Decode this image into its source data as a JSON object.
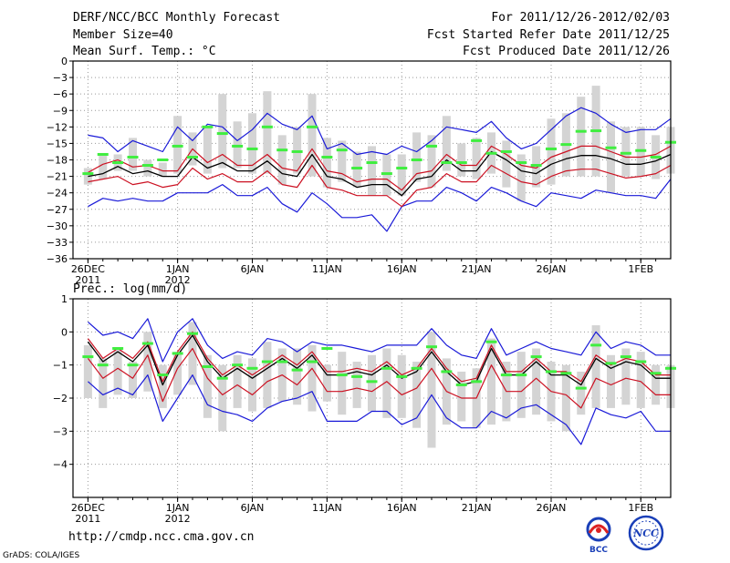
{
  "header": {
    "title": "DERF/NCC/BCC Monthly Forecast",
    "member_size": "Member Size=40",
    "variable": "Mean Surf. Temp.: °C",
    "period": "For 2011/12/26-2012/02/03",
    "refer_date": "Fcst Started Refer Date 2011/12/25",
    "produced_date": "Fcst Produced Date 2011/12/26"
  },
  "footer": {
    "url": "http://cmdp.ncc.cma.gov.cn",
    "credit": "GrADS: COLA/IGES",
    "logo_bcc": "BCC",
    "logo_ncc": "NCC"
  },
  "colors": {
    "median": "#000000",
    "quartile": "#cc1122",
    "extreme": "#1a1ad8",
    "box": "#d4d4d4",
    "marker": "#40ee40",
    "grid": "#999999"
  },
  "chart_data": [
    {
      "type": "line",
      "ylabel": "Mean Surf. Temp.: °C",
      "ylim": [
        -36,
        0
      ],
      "yticks": [
        0,
        -3,
        -6,
        -9,
        -12,
        -15,
        -18,
        -21,
        -24,
        -27,
        -30,
        -33,
        -36
      ],
      "ytick_labels": [
        "0",
        "−3",
        "−6",
        "−9",
        "−12",
        "−15",
        "−18",
        "−21",
        "−24",
        "−27",
        "−30",
        "−33",
        "−36"
      ],
      "xlabels": [
        {
          "day": 1,
          "line1": "26DEC",
          "line2": "2011"
        },
        {
          "day": 7,
          "line1": "1JAN",
          "line2": "2012"
        },
        {
          "day": 12,
          "line1": "6JAN",
          "line2": ""
        },
        {
          "day": 17,
          "line1": "11JAN",
          "line2": ""
        },
        {
          "day": 22,
          "line1": "16JAN",
          "line2": ""
        },
        {
          "day": 27,
          "line1": "21JAN",
          "line2": ""
        },
        {
          "day": 32,
          "line1": "26JAN",
          "line2": ""
        },
        {
          "day": 38,
          "line1": "1FEB",
          "line2": ""
        }
      ],
      "x_range": [
        0,
        40
      ],
      "days": [
        1,
        2,
        3,
        4,
        5,
        6,
        7,
        8,
        9,
        10,
        11,
        12,
        13,
        14,
        15,
        16,
        17,
        18,
        19,
        20,
        21,
        22,
        23,
        24,
        25,
        26,
        27,
        28,
        29,
        30,
        31,
        32,
        33,
        34,
        35,
        36,
        37,
        38,
        39,
        40
      ],
      "series": [
        {
          "name": "median",
          "values": [
            -21,
            -20.5,
            -19.2,
            -20.5,
            -20,
            -21,
            -21,
            -17.5,
            -19.5,
            -18.5,
            -20,
            -20,
            -18.2,
            -20.5,
            -21,
            -17,
            -21,
            -21.5,
            -23,
            -22.5,
            -22.5,
            -24.5,
            -21.5,
            -21,
            -18,
            -20,
            -20,
            -16.5,
            -18,
            -20,
            -20.5,
            -18.8,
            -17.8,
            -17.2,
            -17.2,
            -17.8,
            -18.8,
            -18.8,
            -18.2,
            -17
          ]
        },
        {
          "name": "upper_quartile",
          "values": [
            -20.3,
            -18.8,
            -18,
            -19.3,
            -19,
            -20,
            -20,
            -16,
            -18.5,
            -17,
            -19,
            -19,
            -17,
            -19.5,
            -20,
            -16,
            -20,
            -20.5,
            -22,
            -21.5,
            -21.5,
            -23.5,
            -20.5,
            -20,
            -17,
            -19,
            -19,
            -15.5,
            -17,
            -19,
            -19.5,
            -17.5,
            -16.5,
            -15.5,
            -15.5,
            -16.5,
            -17.5,
            -17.5,
            -17,
            -15.5
          ]
        },
        {
          "name": "lower_quartile",
          "values": [
            -22,
            -21.5,
            -21,
            -22.5,
            -22,
            -23,
            -22.5,
            -19.5,
            -21.5,
            -20.5,
            -22,
            -22,
            -20,
            -22.5,
            -23,
            -19,
            -23,
            -23.5,
            -24.5,
            -24.5,
            -24.5,
            -26.5,
            -23.5,
            -23,
            -20.5,
            -22,
            -22,
            -19,
            -20.5,
            -22,
            -22.5,
            -21,
            -20,
            -19.7,
            -19.7,
            -20.5,
            -21.3,
            -21,
            -20.5,
            -19
          ]
        },
        {
          "name": "maximum",
          "values": [
            -13.5,
            -14,
            -16.5,
            -14.5,
            -15.5,
            -16.5,
            -12,
            -14.5,
            -11.5,
            -12,
            -14.5,
            -12.5,
            -9.5,
            -11.5,
            -12.5,
            -10,
            -16,
            -15,
            -17,
            -16.5,
            -17,
            -15.5,
            -16.5,
            -14.5,
            -12,
            -12.5,
            -13,
            -11,
            -14,
            -16,
            -15,
            -12.5,
            -10,
            -8.5,
            -9.5,
            -11.5,
            -13,
            -12.5,
            -12.5,
            -10.5
          ]
        },
        {
          "name": "minimum",
          "values": [
            -26.5,
            -25,
            -25.5,
            -25,
            -25.5,
            -25.5,
            -24,
            -24,
            -24,
            -22.5,
            -24.5,
            -24.5,
            -23,
            -26,
            -27.5,
            -24,
            -26,
            -28.5,
            -28.5,
            -28,
            -31,
            -26.5,
            -25.5,
            -25.5,
            -23,
            -24,
            -25.5,
            -23,
            -24,
            -25.5,
            -26.5,
            -24,
            -24.5,
            -25,
            -23.5,
            -24,
            -24.5,
            -24.5,
            -25,
            -21.5
          ]
        },
        {
          "name": "box_top",
          "values": [
            -19.5,
            -17,
            -17,
            -14,
            -18,
            -18.5,
            -10,
            -13,
            -12,
            -6,
            -11,
            -9.5,
            -5.5,
            -13.5,
            -12,
            -6,
            -14,
            -14.5,
            -16.5,
            -15.5,
            -17,
            -17,
            -13,
            -13.5,
            -10,
            -15,
            -14,
            -13,
            -14.5,
            -17,
            -15.5,
            -10.5,
            -9.5,
            -6.5,
            -4.5,
            -11,
            -12,
            -12,
            -13.5,
            -12
          ]
        },
        {
          "name": "box_bottom",
          "values": [
            -22.5,
            -21.5,
            -20,
            -20,
            -21,
            -21,
            -20.5,
            -19,
            -20.5,
            -19.5,
            -19.5,
            -20.5,
            -20.5,
            -22.5,
            -20.5,
            -21,
            -23,
            -22,
            -23,
            -24.5,
            -24.5,
            -24.5,
            -22,
            -23,
            -20,
            -21,
            -21.5,
            -20.5,
            -23,
            -25.5,
            -23,
            -22.5,
            -21,
            -21,
            -21,
            -24,
            -21,
            -21,
            -21.5,
            -20.5
          ]
        },
        {
          "name": "ensemble_marker",
          "values": [
            -20.5,
            -17,
            -18.5,
            -17.5,
            -19,
            -18,
            -15.5,
            -17.5,
            -12,
            -13.2,
            -15.5,
            -16,
            -12,
            -16.2,
            -16.5,
            -12,
            -17.5,
            -16.2,
            -19.5,
            -18.5,
            -20.5,
            -19.5,
            -18,
            -15.5,
            -18.5,
            -18.5,
            -14.5,
            -16.8,
            -16.5,
            -18.5,
            -19,
            -16,
            -15.2,
            -12.8,
            -12.7,
            -15.8,
            -16.8,
            -16.3,
            -17.5,
            -14.8
          ]
        }
      ]
    },
    {
      "type": "line",
      "ylabel": "Prec.: log(mm/d)",
      "ylim": [
        -5,
        1
      ],
      "yticks": [
        1,
        0,
        -1,
        -2,
        -3,
        -4
      ],
      "ytick_labels": [
        "1",
        "0",
        "−1",
        "−2",
        "−3",
        "−4"
      ],
      "xlabels": [
        {
          "day": 1,
          "line1": "26DEC",
          "line2": "2011"
        },
        {
          "day": 7,
          "line1": "1JAN",
          "line2": "2012"
        },
        {
          "day": 12,
          "line1": "6JAN",
          "line2": ""
        },
        {
          "day": 17,
          "line1": "11JAN",
          "line2": ""
        },
        {
          "day": 22,
          "line1": "16JAN",
          "line2": ""
        },
        {
          "day": 27,
          "line1": "21JAN",
          "line2": ""
        },
        {
          "day": 32,
          "line1": "26JAN",
          "line2": ""
        },
        {
          "day": 38,
          "line1": "1FEB",
          "line2": ""
        }
      ],
      "x_range": [
        0,
        40
      ],
      "days": [
        1,
        2,
        3,
        4,
        5,
        6,
        7,
        8,
        9,
        10,
        11,
        12,
        13,
        14,
        15,
        16,
        17,
        18,
        19,
        20,
        21,
        22,
        23,
        24,
        25,
        26,
        27,
        28,
        29,
        30,
        31,
        32,
        33,
        34,
        35,
        36,
        37,
        38,
        39,
        40
      ],
      "series": [
        {
          "name": "median",
          "values": [
            -0.3,
            -0.9,
            -0.6,
            -0.9,
            -0.4,
            -1.6,
            -0.7,
            -0.1,
            -0.9,
            -1.4,
            -1.1,
            -1.4,
            -1.1,
            -0.8,
            -1.1,
            -0.7,
            -1.3,
            -1.3,
            -1.2,
            -1.3,
            -1.0,
            -1.4,
            -1.2,
            -0.6,
            -1.2,
            -1.6,
            -1.5,
            -0.5,
            -1.3,
            -1.3,
            -0.9,
            -1.3,
            -1.3,
            -1.6,
            -0.8,
            -1.1,
            -0.9,
            -1.0,
            -1.4,
            -1.4
          ]
        },
        {
          "name": "upper_quartile",
          "values": [
            -0.2,
            -0.8,
            -0.5,
            -0.8,
            -0.3,
            -1.5,
            -0.6,
            0.0,
            -0.8,
            -1.3,
            -1.0,
            -1.3,
            -1.0,
            -0.7,
            -1.0,
            -0.6,
            -1.2,
            -1.2,
            -1.1,
            -1.2,
            -0.9,
            -1.3,
            -1.1,
            -0.5,
            -1.1,
            -1.5,
            -1.4,
            -0.4,
            -1.2,
            -1.2,
            -0.8,
            -1.2,
            -1.2,
            -1.5,
            -0.7,
            -1.0,
            -0.8,
            -0.9,
            -1.3,
            -1.3
          ]
        },
        {
          "name": "lower_quartile",
          "values": [
            -0.8,
            -1.4,
            -1.1,
            -1.4,
            -0.7,
            -2.1,
            -1.1,
            -0.5,
            -1.4,
            -1.9,
            -1.6,
            -1.9,
            -1.5,
            -1.3,
            -1.6,
            -1.1,
            -1.8,
            -1.8,
            -1.7,
            -1.8,
            -1.5,
            -1.9,
            -1.7,
            -1.1,
            -1.8,
            -2.0,
            -2.0,
            -1.0,
            -1.8,
            -1.8,
            -1.4,
            -1.8,
            -1.9,
            -2.3,
            -1.4,
            -1.6,
            -1.4,
            -1.5,
            -1.9,
            -1.9
          ]
        },
        {
          "name": "maximum",
          "values": [
            0.3,
            -0.1,
            0.0,
            -0.2,
            0.4,
            -0.9,
            0.0,
            0.4,
            -0.4,
            -0.8,
            -0.6,
            -0.7,
            -0.2,
            -0.3,
            -0.6,
            -0.3,
            -0.4,
            -0.4,
            -0.5,
            -0.6,
            -0.4,
            -0.4,
            -0.4,
            0.1,
            -0.4,
            -0.7,
            -0.8,
            0.1,
            -0.7,
            -0.5,
            -0.3,
            -0.5,
            -0.6,
            -0.7,
            0.0,
            -0.5,
            -0.3,
            -0.4,
            -0.7,
            -0.7
          ]
        },
        {
          "name": "minimum",
          "values": [
            -1.5,
            -1.9,
            -1.7,
            -1.9,
            -1.3,
            -2.7,
            -2.0,
            -1.3,
            -2.2,
            -2.4,
            -2.5,
            -2.7,
            -2.3,
            -2.1,
            -2.0,
            -1.8,
            -2.7,
            -2.7,
            -2.7,
            -2.4,
            -2.4,
            -2.8,
            -2.6,
            -1.9,
            -2.6,
            -2.9,
            -2.9,
            -2.4,
            -2.6,
            -2.3,
            -2.2,
            -2.5,
            -2.8,
            -3.4,
            -2.3,
            -2.5,
            -2.6,
            -2.4,
            -3.0,
            -3.0
          ]
        },
        {
          "name": "box_top",
          "values": [
            -0.4,
            -0.8,
            -0.5,
            -0.9,
            0.0,
            -1.0,
            -0.6,
            0.3,
            -0.7,
            -1.0,
            -0.7,
            -0.8,
            -0.3,
            -0.5,
            -0.5,
            -0.4,
            -1.0,
            -0.6,
            -0.9,
            -0.7,
            -0.5,
            -0.7,
            -0.9,
            0.0,
            -0.8,
            -1.2,
            -1.1,
            -0.2,
            -0.9,
            -0.6,
            -0.5,
            -0.9,
            -1.0,
            -1.2,
            0.2,
            -0.7,
            -0.5,
            -0.6,
            -1.0,
            -1.0
          ]
        },
        {
          "name": "box_bottom",
          "values": [
            -2.0,
            -2.3,
            -1.9,
            -2.0,
            -1.8,
            -2.3,
            -1.9,
            -1.6,
            -2.6,
            -3.0,
            -2.3,
            -2.4,
            -2.3,
            -2.1,
            -2.2,
            -2.4,
            -2.1,
            -2.5,
            -2.3,
            -2.4,
            -2.6,
            -2.6,
            -2.9,
            -3.5,
            -2.8,
            -2.7,
            -2.9,
            -2.8,
            -2.7,
            -2.6,
            -2.5,
            -2.7,
            -3.0,
            -2.5,
            -2.3,
            -2.3,
            -2.2,
            -2.3,
            -2.2,
            -2.3
          ]
        },
        {
          "name": "ensemble_marker",
          "values": [
            -0.75,
            -1.0,
            -0.5,
            -1.0,
            -0.35,
            -1.3,
            -0.65,
            -0.05,
            -1.05,
            -1.4,
            -1.0,
            -1.1,
            -0.9,
            -0.9,
            -1.15,
            -0.9,
            -0.5,
            -1.3,
            -1.35,
            -1.5,
            -1.1,
            -1.35,
            -1.1,
            -0.45,
            -1.2,
            -1.6,
            -1.5,
            -0.3,
            -1.3,
            -1.3,
            -0.75,
            -1.2,
            -1.25,
            -1.7,
            -0.4,
            -0.95,
            -0.75,
            -0.9,
            -1.25,
            -1.1
          ]
        }
      ]
    }
  ]
}
